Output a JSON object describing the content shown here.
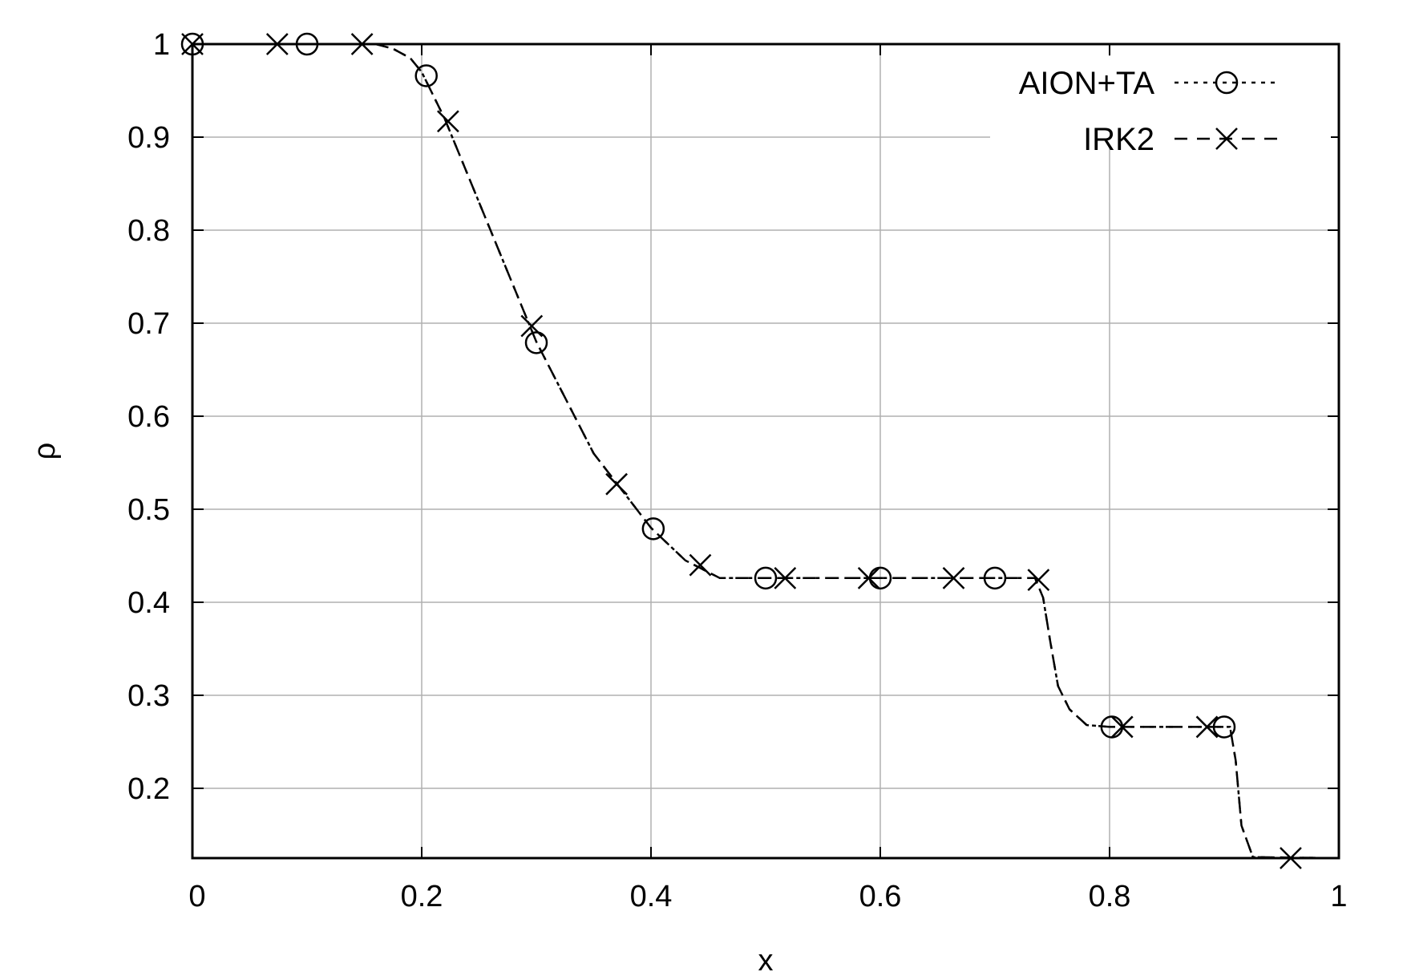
{
  "chart_data": {
    "type": "line",
    "title": "",
    "xlabel": "x",
    "ylabel": "ρ",
    "xlim": [
      0,
      1
    ],
    "ylim": [
      0.125,
      1
    ],
    "grid": true,
    "legend_position": "top-right",
    "x_ticks": [
      "0",
      "0.2",
      "0.4",
      "0.6",
      "0.8",
      "1"
    ],
    "x_tick_values": [
      0,
      0.2,
      0.4,
      0.6,
      0.8,
      1
    ],
    "y_ticks": [
      "0.2",
      "0.3",
      "0.4",
      "0.5",
      "0.6",
      "0.7",
      "0.8",
      "0.9",
      "1"
    ],
    "y_tick_values": [
      0.2,
      0.3,
      0.4,
      0.5,
      0.6,
      0.7,
      0.8,
      0.9,
      1
    ],
    "series": [
      {
        "name": "AION+TA",
        "line_style": "dotted",
        "marker": "circle",
        "curve": [
          [
            0,
            1
          ],
          [
            0.16,
            1
          ],
          [
            0.175,
            0.995
          ],
          [
            0.19,
            0.985
          ],
          [
            0.2,
            0.97
          ],
          [
            0.22,
            0.92
          ],
          [
            0.25,
            0.83
          ],
          [
            0.3,
            0.68
          ],
          [
            0.35,
            0.56
          ],
          [
            0.4,
            0.48
          ],
          [
            0.43,
            0.445
          ],
          [
            0.46,
            0.426
          ],
          [
            0.5,
            0.426
          ],
          [
            0.6,
            0.426
          ],
          [
            0.7,
            0.426
          ],
          [
            0.735,
            0.426
          ],
          [
            0.742,
            0.405
          ],
          [
            0.748,
            0.36
          ],
          [
            0.755,
            0.31
          ],
          [
            0.765,
            0.285
          ],
          [
            0.78,
            0.268
          ],
          [
            0.8,
            0.266
          ],
          [
            0.9,
            0.266
          ],
          [
            0.905,
            0.266
          ],
          [
            0.91,
            0.23
          ],
          [
            0.915,
            0.16
          ],
          [
            0.925,
            0.126
          ],
          [
            1,
            0.125
          ]
        ],
        "markers": [
          [
            0,
            1
          ],
          [
            0.1,
            1
          ],
          [
            0.204,
            0.966
          ],
          [
            0.3,
            0.679
          ],
          [
            0.402,
            0.479
          ],
          [
            0.5,
            0.426
          ],
          [
            0.6,
            0.426
          ],
          [
            0.7,
            0.426
          ],
          [
            0.802,
            0.266
          ],
          [
            0.9,
            0.266
          ]
        ]
      },
      {
        "name": "IRK2",
        "line_style": "dashed",
        "marker": "cross",
        "curve": [
          [
            0,
            1
          ],
          [
            0.16,
            1
          ],
          [
            0.175,
            0.995
          ],
          [
            0.19,
            0.985
          ],
          [
            0.2,
            0.97
          ],
          [
            0.22,
            0.92
          ],
          [
            0.25,
            0.83
          ],
          [
            0.3,
            0.68
          ],
          [
            0.35,
            0.56
          ],
          [
            0.4,
            0.48
          ],
          [
            0.43,
            0.445
          ],
          [
            0.46,
            0.426
          ],
          [
            0.5,
            0.426
          ],
          [
            0.6,
            0.426
          ],
          [
            0.7,
            0.426
          ],
          [
            0.735,
            0.426
          ],
          [
            0.742,
            0.405
          ],
          [
            0.748,
            0.36
          ],
          [
            0.755,
            0.31
          ],
          [
            0.765,
            0.285
          ],
          [
            0.78,
            0.268
          ],
          [
            0.8,
            0.266
          ],
          [
            0.9,
            0.266
          ],
          [
            0.905,
            0.266
          ],
          [
            0.91,
            0.23
          ],
          [
            0.915,
            0.16
          ],
          [
            0.925,
            0.126
          ],
          [
            1,
            0.125
          ]
        ],
        "markers": [
          [
            0,
            1
          ],
          [
            0.074,
            1
          ],
          [
            0.148,
            1
          ],
          [
            0.223,
            0.917
          ],
          [
            0.296,
            0.697
          ],
          [
            0.37,
            0.527
          ],
          [
            0.443,
            0.44
          ],
          [
            0.517,
            0.426
          ],
          [
            0.59,
            0.426
          ],
          [
            0.664,
            0.426
          ],
          [
            0.738,
            0.424
          ],
          [
            0.811,
            0.266
          ],
          [
            0.885,
            0.266
          ],
          [
            0.958,
            0.125
          ]
        ]
      }
    ]
  }
}
